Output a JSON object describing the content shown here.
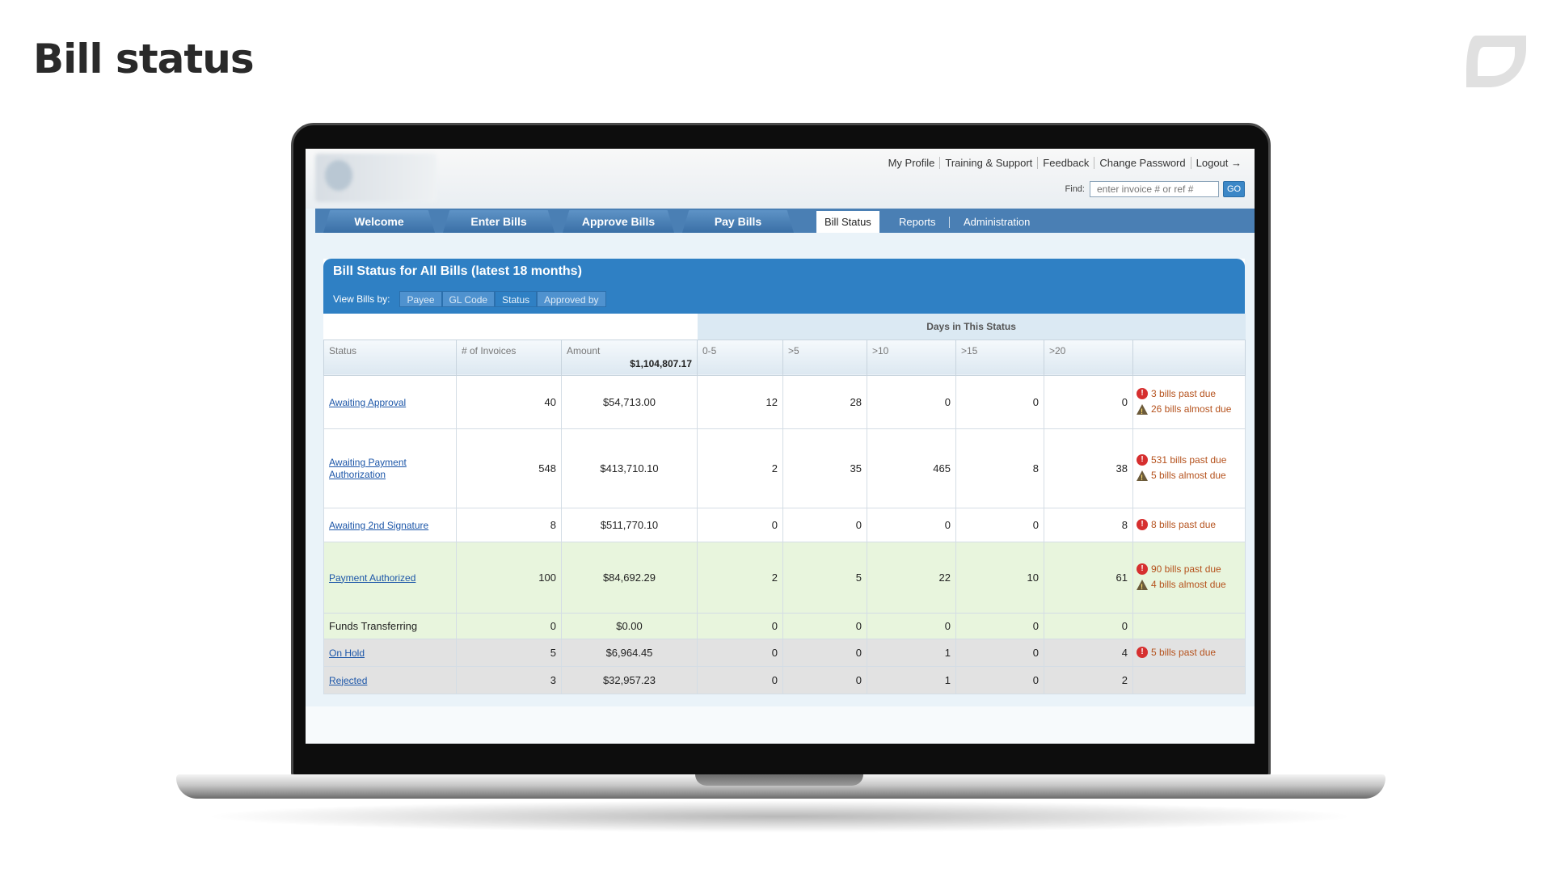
{
  "slide": {
    "title": "Bill status"
  },
  "header": {
    "links": [
      "My Profile",
      "Training & Support",
      "Feedback",
      "Change Password",
      "Logout →"
    ],
    "find_label": "Find:",
    "find_placeholder": "enter invoice # or ref #",
    "go_label": "GO"
  },
  "nav": {
    "main_tabs": [
      "Welcome",
      "Enter Bills",
      "Approve Bills",
      "Pay Bills"
    ],
    "sub_tabs": [
      "Bill Status",
      "Reports",
      "Administration"
    ],
    "active_sub_tab": "Bill Status"
  },
  "panel": {
    "title": "Bill Status for All Bills  (latest 18 months)",
    "view_by_label": "View Bills by:",
    "view_by_options": [
      "Payee",
      "GL Code",
      "Status",
      "Approved by"
    ],
    "active_view": "Status"
  },
  "table": {
    "group_header": "Days in This Status",
    "columns": [
      "Status",
      "# of Invoices",
      "Amount",
      "0-5",
      ">5",
      ">10",
      ">15",
      ">20",
      ""
    ],
    "amount_total": "$1,104,807.17",
    "rows": [
      {
        "status": "Awaiting Approval",
        "link": true,
        "invoices": "40",
        "amount": "$54,713.00",
        "d0_5": "12",
        "d5": "28",
        "d10": "0",
        "d15": "0",
        "d20": "0",
        "alerts": [
          {
            "type": "past",
            "text": "3 bills past due"
          },
          {
            "type": "almost",
            "text": "26 bills almost due"
          }
        ]
      },
      {
        "status": "Awaiting Payment Authorization",
        "link": true,
        "invoices": "548",
        "amount": "$413,710.10",
        "d0_5": "2",
        "d5": "35",
        "d10": "465",
        "d15": "8",
        "d20": "38",
        "alerts": [
          {
            "type": "past",
            "text": "531 bills past due"
          },
          {
            "type": "almost",
            "text": "5 bills almost due"
          }
        ]
      },
      {
        "status": "Awaiting 2nd Signature",
        "link": true,
        "invoices": "8",
        "amount": "$511,770.10",
        "d0_5": "0",
        "d5": "0",
        "d10": "0",
        "d15": "0",
        "d20": "8",
        "alerts": [
          {
            "type": "past",
            "text": "8 bills past due"
          }
        ]
      },
      {
        "status": "Payment Authorized",
        "link": true,
        "invoices": "100",
        "amount": "$84,692.29",
        "d0_5": "2",
        "d5": "5",
        "d10": "22",
        "d15": "10",
        "d20": "61",
        "alerts": [
          {
            "type": "past",
            "text": "90 bills past due"
          },
          {
            "type": "almost",
            "text": "4 bills almost due"
          }
        ]
      },
      {
        "status": "Funds Transferring",
        "link": false,
        "invoices": "0",
        "amount": "$0.00",
        "d0_5": "0",
        "d5": "0",
        "d10": "0",
        "d15": "0",
        "d20": "0",
        "alerts": []
      },
      {
        "status": "On Hold",
        "link": true,
        "invoices": "5",
        "amount": "$6,964.45",
        "d0_5": "0",
        "d5": "0",
        "d10": "1",
        "d15": "0",
        "d20": "4",
        "alerts": [
          {
            "type": "past",
            "text": "5 bills past due"
          }
        ]
      },
      {
        "status": "Rejected",
        "link": true,
        "invoices": "3",
        "amount": "$32,957.23",
        "d0_5": "0",
        "d5": "0",
        "d10": "1",
        "d15": "0",
        "d20": "2",
        "alerts": []
      }
    ]
  },
  "icons": {
    "past_due": "error-circle-icon",
    "almost_due": "warning-triangle-icon"
  },
  "colors": {
    "panel_blue": "#2f80c4",
    "nav_blue": "#4a7fb4",
    "alert_text": "#b5521d",
    "link": "#1c56a8"
  }
}
